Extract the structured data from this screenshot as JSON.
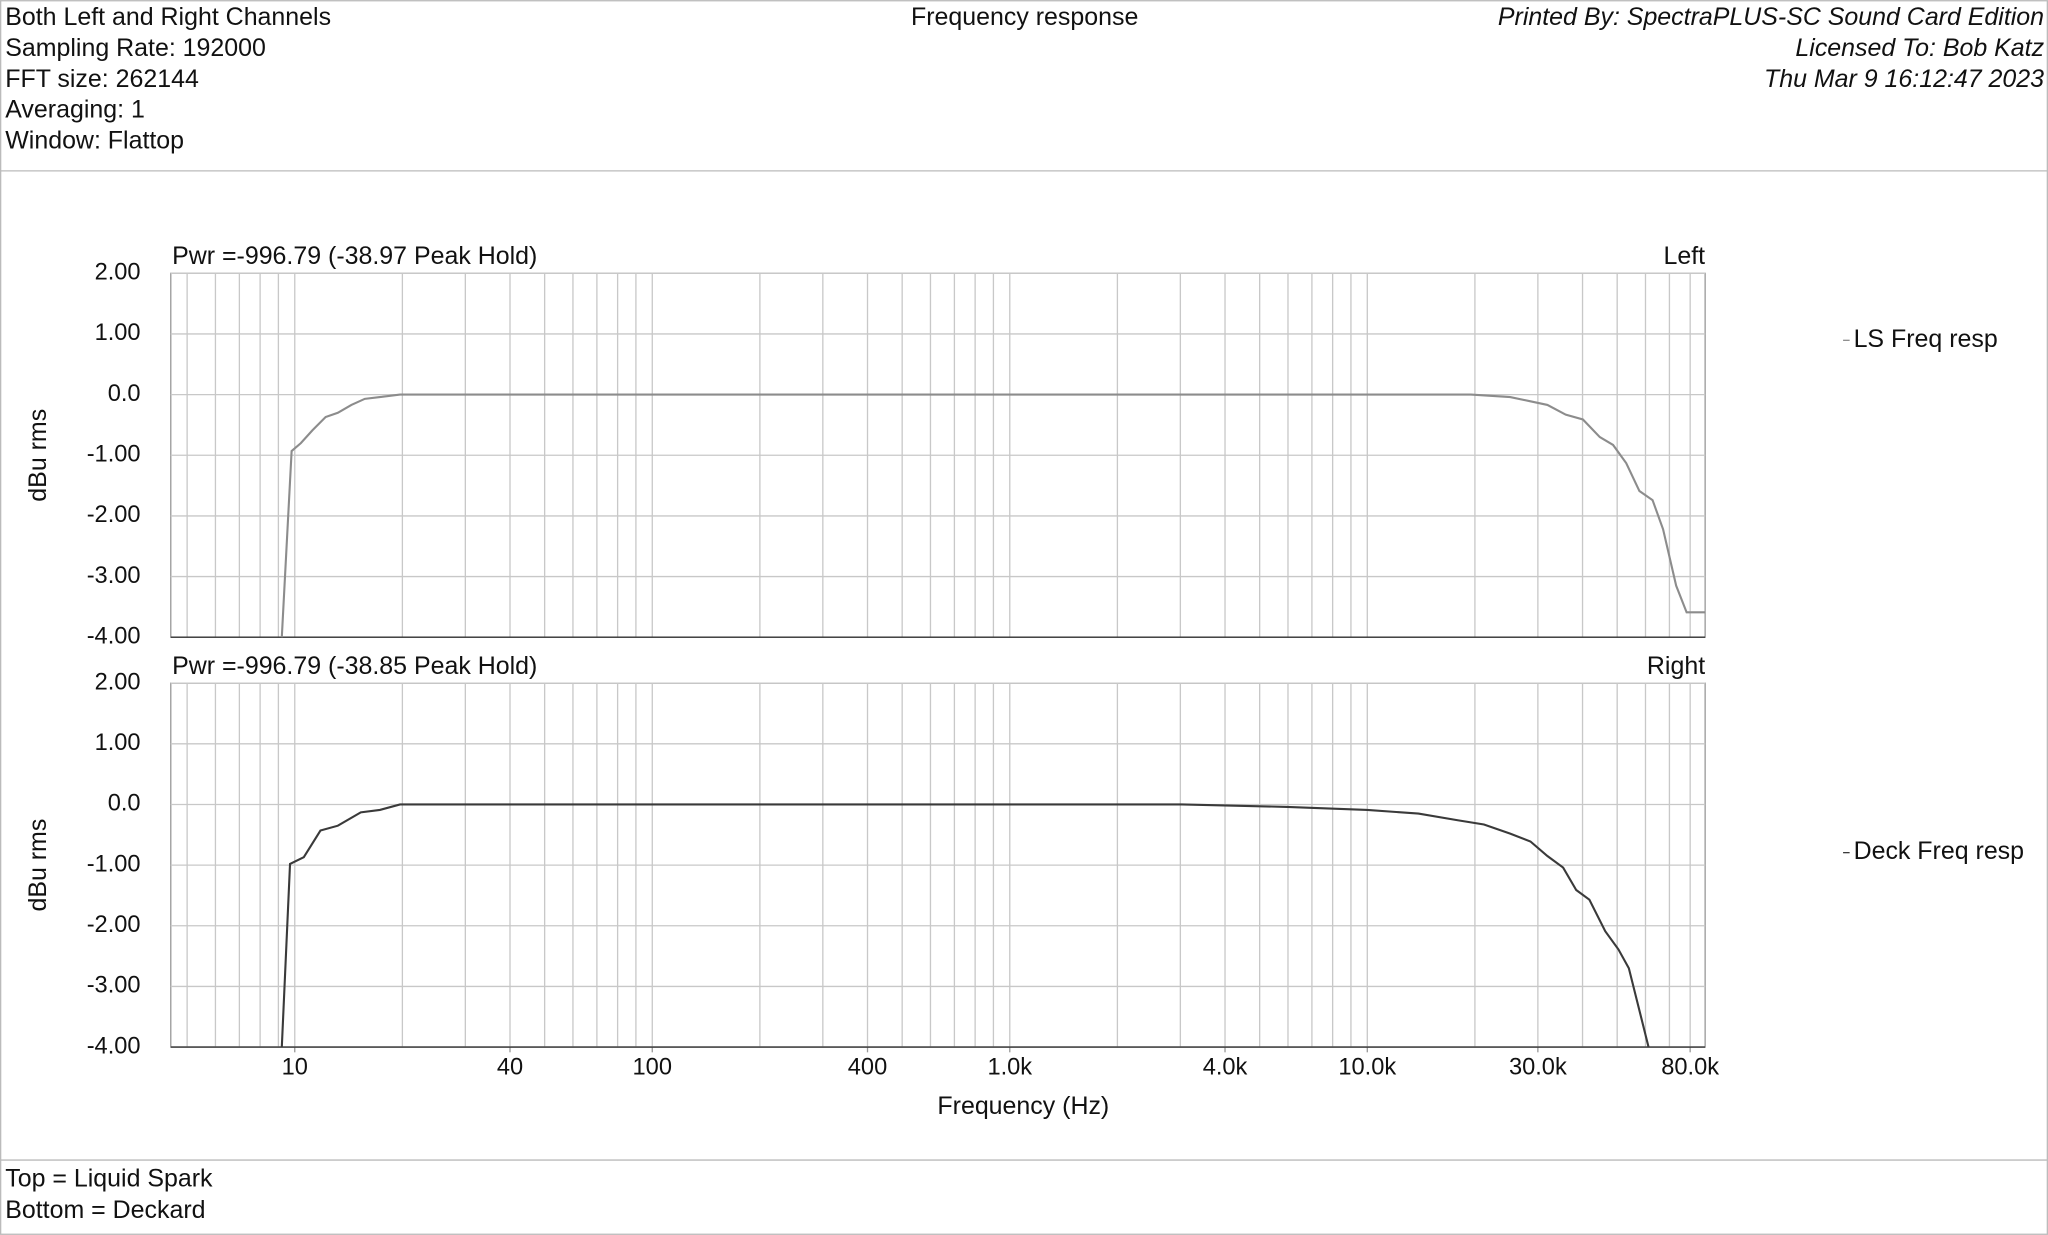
{
  "header": {
    "info": [
      "Both Left and Right Channels",
      "Sampling Rate: 192000",
      "FFT size: 262144",
      "Averaging: 1",
      "Window: Flattop"
    ],
    "title": "Frequency response",
    "printed": [
      "Printed By: SpectraPLUS-SC Sound Card Edition",
      "Licensed To: Bob Katz",
      "Thu Mar  9 16:12:47 2023"
    ]
  },
  "chart_data": [
    {
      "type": "line",
      "subtitle": "Pwr =-996.79 (-38.97 Peak Hold)",
      "channel": "Left",
      "ylabel": "dBu rms",
      "xscale": "log",
      "grid": true,
      "legend": "right",
      "x": [
        9.2,
        9.8,
        10.4,
        11.2,
        12.2,
        13.2,
        14.4,
        15.7,
        17.3,
        19.7,
        44,
        7060,
        19500,
        25100,
        28600,
        31900,
        35900,
        40100,
        44700,
        48700,
        53000,
        57700,
        62800,
        67200,
        73100,
        78200,
        88100
      ],
      "series": [
        {
          "name": "LS Freq resp",
          "color": "#8c8c8c",
          "values": [
            -4.0,
            -0.93,
            -0.8,
            -0.59,
            -0.37,
            -0.3,
            -0.17,
            -0.07,
            -0.04,
            0.0,
            0.0,
            0.0,
            0.0,
            -0.04,
            -0.11,
            -0.17,
            -0.33,
            -0.41,
            -0.7,
            -0.83,
            -1.13,
            -1.59,
            -1.74,
            -2.22,
            -3.15,
            -3.59,
            -3.59
          ]
        }
      ],
      "xlim": [
        4.5,
        88100
      ],
      "ylim": [
        -4,
        2
      ],
      "yticks": [
        {
          "value": 2,
          "label": "2.00"
        },
        {
          "value": 1,
          "label": "1.00"
        },
        {
          "value": 0,
          "label": "0.0"
        },
        {
          "value": -1,
          "label": "-1.00"
        },
        {
          "value": -2,
          "label": "-2.00"
        },
        {
          "value": -3,
          "label": "-3.00"
        },
        {
          "value": -4,
          "label": "-4.00"
        }
      ],
      "xgrid": [
        5,
        6,
        7,
        8,
        9,
        10,
        20,
        30,
        40,
        50,
        60,
        70,
        80,
        90,
        100,
        200,
        300,
        400,
        500,
        600,
        700,
        800,
        900,
        1000,
        2000,
        3000,
        4000,
        5000,
        6000,
        7000,
        8000,
        9000,
        10000,
        20000,
        30000,
        40000,
        50000,
        60000,
        70000,
        80000
      ]
    },
    {
      "type": "line",
      "subtitle": "Pwr =-996.79 (-38.85 Peak Hold)",
      "channel": "Right",
      "ylabel": "dBu rms",
      "xlabel": "Frequency (Hz)",
      "xscale": "log",
      "grid": true,
      "legend": "right",
      "x": [
        9.2,
        9.7,
        10.6,
        11.8,
        13.2,
        15.3,
        17.3,
        19.7,
        239,
        3030,
        5970,
        10000,
        13900,
        17900,
        21200,
        25100,
        28600,
        31900,
        35300,
        38400,
        41800,
        46300,
        50400,
        53900,
        61200
      ],
      "series": [
        {
          "name": "Deck Freq resp",
          "color": "#3a3a3a",
          "values": [
            -4.0,
            -0.98,
            -0.87,
            -0.43,
            -0.35,
            -0.13,
            -0.09,
            0.0,
            0.0,
            0.0,
            -0.04,
            -0.09,
            -0.15,
            -0.26,
            -0.33,
            -0.48,
            -0.61,
            -0.85,
            -1.04,
            -1.41,
            -1.57,
            -2.09,
            -2.39,
            -2.7,
            -4.0
          ]
        }
      ],
      "xlim": [
        4.5,
        88100
      ],
      "ylim": [
        -4,
        2
      ],
      "yticks": [
        {
          "value": 2,
          "label": "2.00"
        },
        {
          "value": 1,
          "label": "1.00"
        },
        {
          "value": 0,
          "label": "0.0"
        },
        {
          "value": -1,
          "label": "-1.00"
        },
        {
          "value": -2,
          "label": "-2.00"
        },
        {
          "value": -3,
          "label": "-3.00"
        },
        {
          "value": -4,
          "label": "-4.00"
        }
      ],
      "xticks": [
        10,
        40,
        100,
        400,
        {
          "value": 1000,
          "label": "1.0k"
        },
        {
          "value": 4000,
          "label": "4.0k"
        },
        {
          "value": 10000,
          "label": "10.0k"
        },
        {
          "value": 30000,
          "label": "30.0k"
        },
        {
          "value": 80000,
          "label": "80.0k"
        }
      ],
      "xgrid": [
        5,
        6,
        7,
        8,
        9,
        10,
        20,
        30,
        40,
        50,
        60,
        70,
        80,
        90,
        100,
        200,
        300,
        400,
        500,
        600,
        700,
        800,
        900,
        1000,
        2000,
        3000,
        4000,
        5000,
        6000,
        7000,
        8000,
        9000,
        10000,
        20000,
        30000,
        40000,
        50000,
        60000,
        70000,
        80000
      ]
    }
  ],
  "footer": [
    "Top = Liquid Spark",
    "Bottom = Deckard"
  ]
}
